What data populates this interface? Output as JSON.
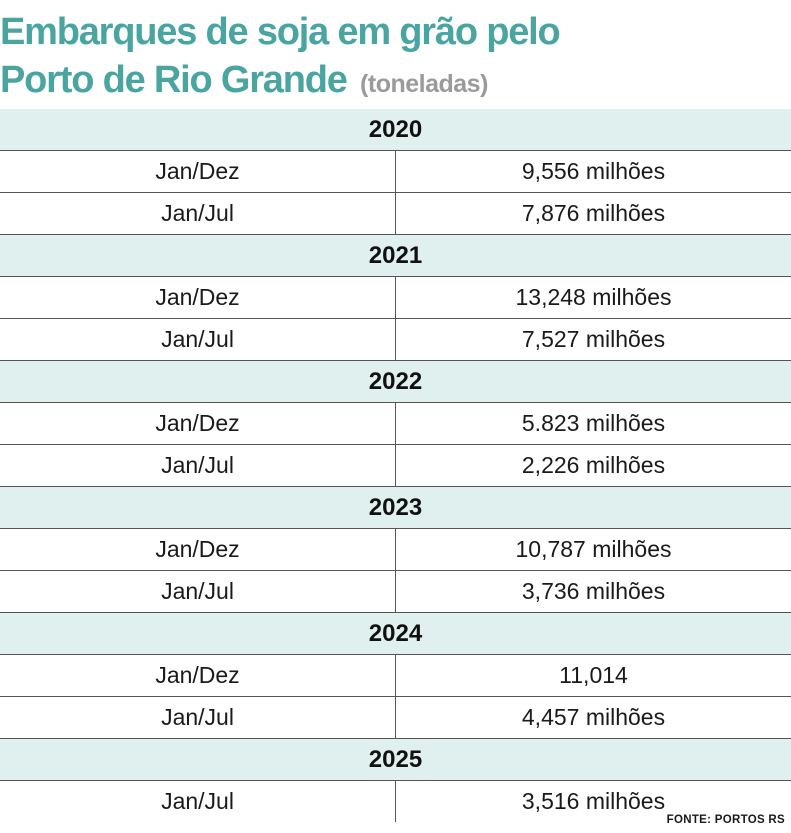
{
  "title_line1": "Embarques de soja em grão pelo",
  "title_line2": "Porto de Rio Grande",
  "unit": "(toneladas)",
  "source": "FONTE: PORTOS RS",
  "chart_data": {
    "type": "table",
    "title": "Embarques de soja em grão pelo Porto de Rio Grande (toneladas)",
    "groups": [
      {
        "year": "2020",
        "rows": [
          {
            "period": "Jan/Dez",
            "value": "9,556 milhões"
          },
          {
            "period": "Jan/Jul",
            "value": "7,876 milhões"
          }
        ]
      },
      {
        "year": "2021",
        "rows": [
          {
            "period": "Jan/Dez",
            "value": "13,248 milhões"
          },
          {
            "period": "Jan/Jul",
            "value": "7,527 milhões"
          }
        ]
      },
      {
        "year": "2022",
        "rows": [
          {
            "period": "Jan/Dez",
            "value": "5.823 milhões"
          },
          {
            "period": "Jan/Jul",
            "value": "2,226 milhões"
          }
        ]
      },
      {
        "year": "2023",
        "rows": [
          {
            "period": "Jan/Dez",
            "value": "10,787 milhões"
          },
          {
            "period": "Jan/Jul",
            "value": "3,736 milhões"
          }
        ]
      },
      {
        "year": "2024",
        "rows": [
          {
            "period": "Jan/Dez",
            "value": "11,014"
          },
          {
            "period": "Jan/Jul",
            "value": "4,457 milhões"
          }
        ]
      },
      {
        "year": "2025",
        "rows": [
          {
            "period": "Jan/Jul",
            "value": "3,516 milhões"
          }
        ]
      }
    ]
  }
}
